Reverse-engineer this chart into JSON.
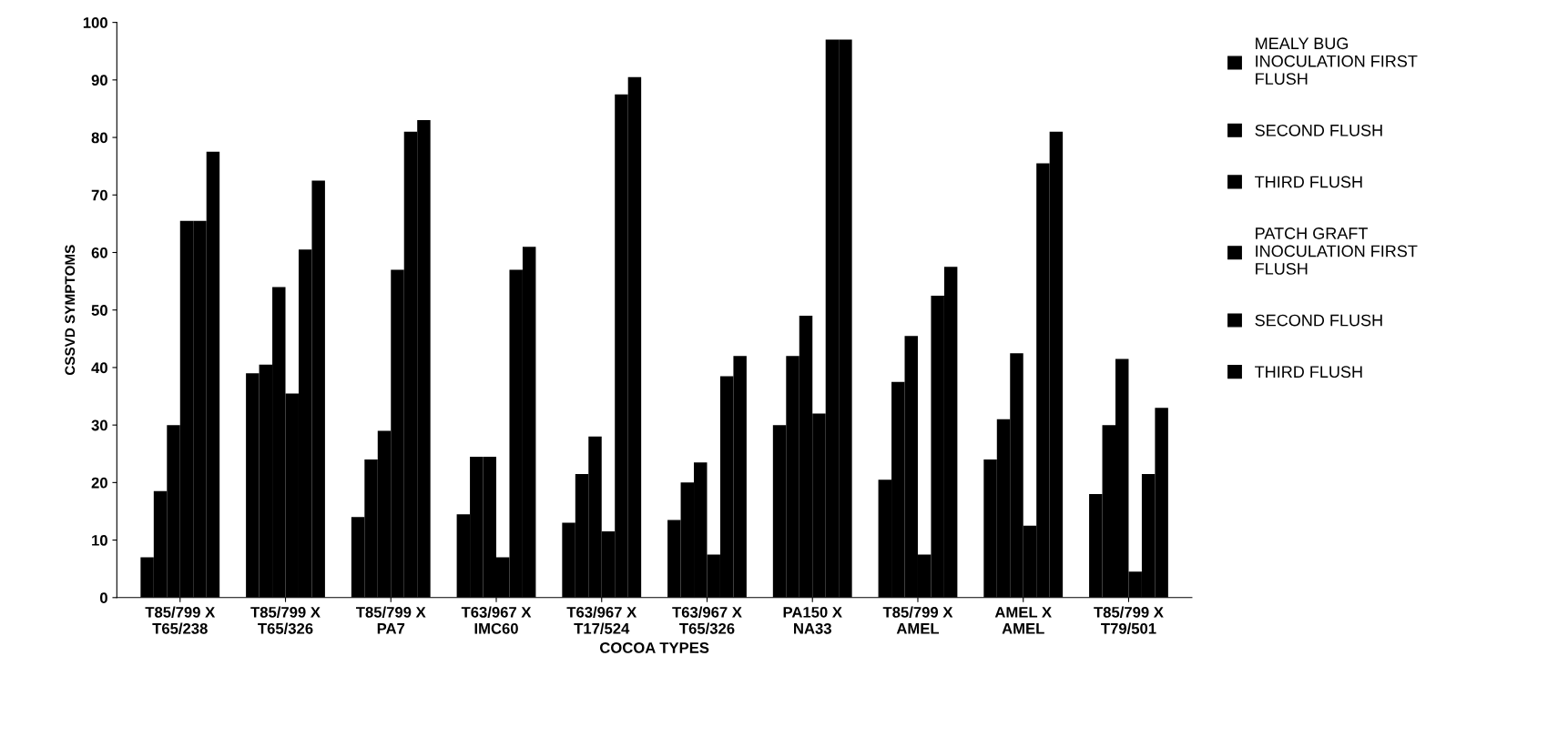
{
  "chart_data": {
    "type": "bar",
    "xlabel": "COCOA TYPES",
    "ylabel": "CSSVD SYMPTOMS",
    "categories": [
      "T85/799 X\nT65/238",
      "T85/799 X\nT65/326",
      "T85/799 X\nPA7",
      "T63/967 X\nIMC60",
      "T63/967 X\nT17/524",
      "T63/967 X\nT65/326",
      "PA150 X\nNA33",
      "T85/799 X\nAMEL",
      "AMEL X\nAMEL",
      "T85/799 X\nT79/501"
    ],
    "series": [
      {
        "name": "MEALY BUG\nINOCULATION FIRST\nFLUSH",
        "color": "#000000",
        "values": [
          7,
          39,
          14,
          14.5,
          13,
          13.5,
          30,
          20.5,
          24,
          18
        ]
      },
      {
        "name": "SECOND FLUSH",
        "color": "#000000",
        "values": [
          18.5,
          40.5,
          24,
          24.5,
          21.5,
          20,
          42,
          37.5,
          31,
          30
        ]
      },
      {
        "name": "THIRD FLUSH",
        "color": "#000000",
        "values": [
          30,
          54,
          29,
          24.5,
          28,
          23.5,
          49,
          45.5,
          42.5,
          41.5
        ]
      },
      {
        "name": "PATCH GRAFT\nINOCULATION FIRST\nFLUSH",
        "color": "#000000",
        "values": [
          65.5,
          35.5,
          57,
          7,
          11.5,
          7.5,
          32,
          7.5,
          12.5,
          4.5
        ]
      },
      {
        "name": "SECOND FLUSH",
        "color": "#000000",
        "values": [
          65.5,
          60.5,
          81,
          57,
          87.5,
          38.5,
          97,
          52.5,
          75.5,
          21.5
        ]
      },
      {
        "name": "THIRD FLUSH",
        "color": "#000000",
        "values": [
          77.5,
          72.5,
          83,
          61,
          90.5,
          42,
          97,
          57.5,
          81,
          33
        ]
      }
    ],
    "ylim": [
      0,
      100
    ],
    "yticks": [
      0,
      10,
      20,
      30,
      40,
      50,
      60,
      70,
      80,
      90,
      100
    ],
    "grid": false,
    "legend": "right"
  }
}
